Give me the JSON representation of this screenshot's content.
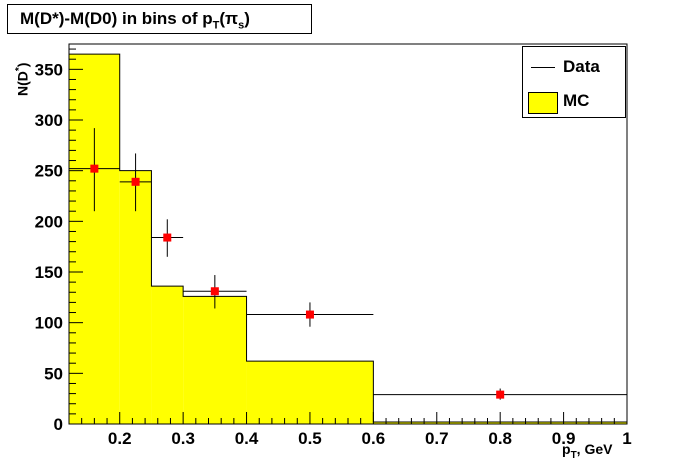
{
  "chart_data": {
    "type": "histogram",
    "title": "M(D*)-M(D0) in bins of p",
    "title_sub": "T",
    "title_paren": "(π",
    "title_paren_sub": "s",
    "title_close": ")",
    "ylabel": "N(D",
    "ylabel_sup": "*",
    "ylabel_close": ")",
    "xlabel": "p",
    "xlabel_sub": "T",
    "xlabel_unit": ", GeV",
    "xlim": [
      0.12,
      1.0
    ],
    "ylim": [
      0,
      375
    ],
    "xticks": [
      0.2,
      0.3,
      0.4,
      0.5,
      0.6,
      0.7,
      0.8,
      0.9,
      1.0
    ],
    "xtick_labels": [
      "0.2",
      "0.3",
      "0.4",
      "0.5",
      "0.6",
      "0.7",
      "0.8",
      "0.9",
      "1"
    ],
    "yticks": [
      0,
      50,
      100,
      150,
      200,
      250,
      300,
      350
    ],
    "ytick_labels": [
      "0",
      "50",
      "100",
      "150",
      "200",
      "250",
      "300",
      "350"
    ],
    "mc": {
      "name": "MC",
      "color": "#ffff00",
      "bins": [
        {
          "x0": 0.12,
          "x1": 0.2,
          "y": 365
        },
        {
          "x0": 0.2,
          "x1": 0.25,
          "y": 250
        },
        {
          "x0": 0.25,
          "x1": 0.3,
          "y": 136
        },
        {
          "x0": 0.3,
          "x1": 0.4,
          "y": 126
        },
        {
          "x0": 0.4,
          "x1": 0.6,
          "y": 62
        },
        {
          "x0": 0.6,
          "x1": 1.0,
          "y": 2
        }
      ]
    },
    "data": {
      "name": "Data",
      "color": "#ff0000",
      "points": [
        {
          "x": 0.16,
          "y": 252,
          "xlo": 0.12,
          "xhi": 0.2,
          "ylo": 210,
          "yhi": 292
        },
        {
          "x": 0.225,
          "y": 239,
          "xlo": 0.2,
          "xhi": 0.25,
          "ylo": 210,
          "yhi": 267
        },
        {
          "x": 0.275,
          "y": 184,
          "xlo": 0.25,
          "xhi": 0.3,
          "ylo": 165,
          "yhi": 202
        },
        {
          "x": 0.35,
          "y": 131,
          "xlo": 0.3,
          "xhi": 0.4,
          "ylo": 114,
          "yhi": 147
        },
        {
          "x": 0.5,
          "y": 108,
          "xlo": 0.4,
          "xhi": 0.6,
          "ylo": 96,
          "yhi": 120
        },
        {
          "x": 0.8,
          "y": 29,
          "xlo": 0.6,
          "xhi": 1.0,
          "ylo": 24,
          "yhi": 35
        }
      ]
    },
    "legend": [
      "Data",
      "MC"
    ],
    "legend_position": "top-right"
  }
}
